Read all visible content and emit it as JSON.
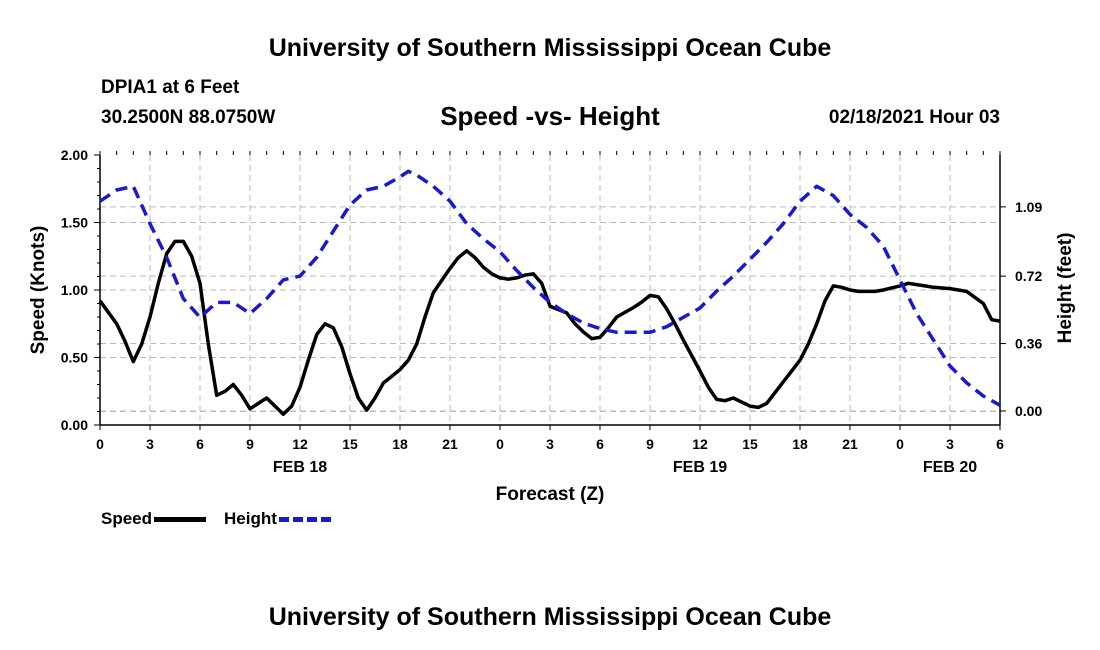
{
  "page": {
    "top_title": "University of Southern Mississippi Ocean Cube",
    "bottom_title": "University of Southern Mississippi Ocean Cube",
    "station": "DPIA1 at 6 Feet",
    "coords": "30.2500N 88.0750W",
    "datetime": "02/18/2021 Hour 03"
  },
  "colors": {
    "speed": "#000000",
    "height": "#1a1acc",
    "grid": "#bbbbbb"
  },
  "chart_data": {
    "type": "line",
    "title": "Speed -vs- Height",
    "xlabel": "Forecast (Z)",
    "ylabel": "Speed (Knots)",
    "y2label": "Height (feet)",
    "x_range": [
      0,
      54
    ],
    "ylim": [
      0,
      2.0
    ],
    "y2lim": [
      -0.075,
      1.367
    ],
    "x_ticks": [
      0,
      3,
      6,
      9,
      12,
      15,
      18,
      21,
      24,
      27,
      30,
      33,
      36,
      39,
      42,
      45,
      48,
      51,
      54
    ],
    "x_tick_labels": [
      "0",
      "3",
      "6",
      "9",
      "12",
      "15",
      "18",
      "21",
      "0",
      "3",
      "6",
      "9",
      "12",
      "15",
      "18",
      "21",
      "0",
      "3",
      "6"
    ],
    "date_labels": [
      {
        "label": "FEB 18",
        "hour": 12
      },
      {
        "label": "FEB 19",
        "hour": 36
      },
      {
        "label": "FEB 20",
        "hour": 51
      }
    ],
    "y_ticks": [
      0,
      0.5,
      1.0,
      1.5,
      2.0
    ],
    "y_tick_labels": [
      "0.00",
      "0.50",
      "1.00",
      "1.50",
      "2.00"
    ],
    "y2_ticks": [
      0,
      0.36,
      0.72,
      1.09
    ],
    "y2_tick_labels": [
      "0.00",
      "0.36",
      "0.72",
      "1.09"
    ],
    "series": [
      {
        "name": "Speed",
        "axis": "left",
        "style": "solid",
        "x": [
          0,
          1,
          1.5,
          2,
          2.5,
          3,
          3.5,
          4,
          4.5,
          5,
          5.5,
          6,
          6.5,
          7,
          7.5,
          8,
          8.5,
          9,
          9.5,
          10,
          10.5,
          11,
          11.5,
          12,
          12.5,
          13,
          13.5,
          14,
          14.5,
          15,
          15.5,
          16,
          16.5,
          17,
          18,
          18.5,
          19,
          19.5,
          20,
          21,
          21.5,
          22,
          22.5,
          23,
          23.5,
          24,
          24.5,
          25,
          25.5,
          26,
          26.5,
          27,
          28,
          28.5,
          29,
          29.5,
          30,
          30.5,
          31,
          32,
          32.5,
          33,
          33.5,
          34,
          34.5,
          35,
          36,
          36.5,
          37,
          37.5,
          38,
          38.5,
          39,
          39.5,
          40,
          41,
          41.5,
          42,
          42.5,
          43,
          43.5,
          44,
          44.5,
          45,
          45.5,
          46,
          46.5,
          47,
          48,
          48.5,
          49,
          49.5,
          50,
          51,
          52,
          53,
          53.5,
          54
        ],
        "values": [
          0.92,
          0.75,
          0.62,
          0.47,
          0.6,
          0.8,
          1.05,
          1.27,
          1.36,
          1.36,
          1.25,
          1.05,
          0.6,
          0.22,
          0.25,
          0.3,
          0.22,
          0.12,
          0.16,
          0.2,
          0.14,
          0.08,
          0.14,
          0.28,
          0.48,
          0.67,
          0.75,
          0.72,
          0.58,
          0.38,
          0.2,
          0.11,
          0.2,
          0.31,
          0.41,
          0.48,
          0.6,
          0.8,
          0.98,
          1.16,
          1.24,
          1.29,
          1.24,
          1.17,
          1.12,
          1.09,
          1.08,
          1.09,
          1.11,
          1.12,
          1.05,
          0.88,
          0.83,
          0.75,
          0.69,
          0.64,
          0.65,
          0.72,
          0.8,
          0.87,
          0.91,
          0.96,
          0.95,
          0.86,
          0.75,
          0.63,
          0.4,
          0.28,
          0.19,
          0.18,
          0.2,
          0.17,
          0.14,
          0.13,
          0.16,
          0.32,
          0.4,
          0.48,
          0.6,
          0.75,
          0.92,
          1.03,
          1.02,
          1.0,
          0.99,
          0.99,
          0.99,
          1.0,
          1.03,
          1.05,
          1.04,
          1.03,
          1.02,
          1.01,
          0.99,
          0.9,
          0.78,
          0.77
        ]
      },
      {
        "name": "Height",
        "axis": "right",
        "style": "dashed",
        "x": [
          0,
          1,
          2,
          3,
          4,
          5,
          6,
          7,
          8,
          9,
          10,
          11,
          12,
          13,
          14,
          15,
          16,
          17,
          18,
          18.5,
          19,
          20,
          21,
          22,
          23,
          24,
          25,
          26,
          27,
          28,
          29,
          30,
          31,
          32,
          33,
          34,
          35,
          36,
          37,
          38,
          39,
          40,
          41,
          42,
          43,
          44,
          45,
          46,
          47,
          48,
          49,
          50,
          51,
          52,
          53,
          54
        ],
        "values": [
          1.12,
          1.18,
          1.2,
          1.0,
          0.82,
          0.6,
          0.5,
          0.58,
          0.58,
          0.52,
          0.6,
          0.7,
          0.72,
          0.82,
          0.96,
          1.1,
          1.18,
          1.2,
          1.25,
          1.28,
          1.26,
          1.2,
          1.12,
          1.0,
          0.92,
          0.85,
          0.75,
          0.66,
          0.58,
          0.52,
          0.47,
          0.44,
          0.42,
          0.42,
          0.42,
          0.45,
          0.5,
          0.55,
          0.64,
          0.72,
          0.81,
          0.9,
          1.0,
          1.12,
          1.2,
          1.15,
          1.05,
          0.98,
          0.88,
          0.7,
          0.52,
          0.38,
          0.24,
          0.15,
          0.08,
          0.03
        ]
      }
    ],
    "legend": [
      {
        "name": "Speed",
        "style": "solid"
      },
      {
        "name": "Height",
        "style": "dashed"
      }
    ]
  }
}
